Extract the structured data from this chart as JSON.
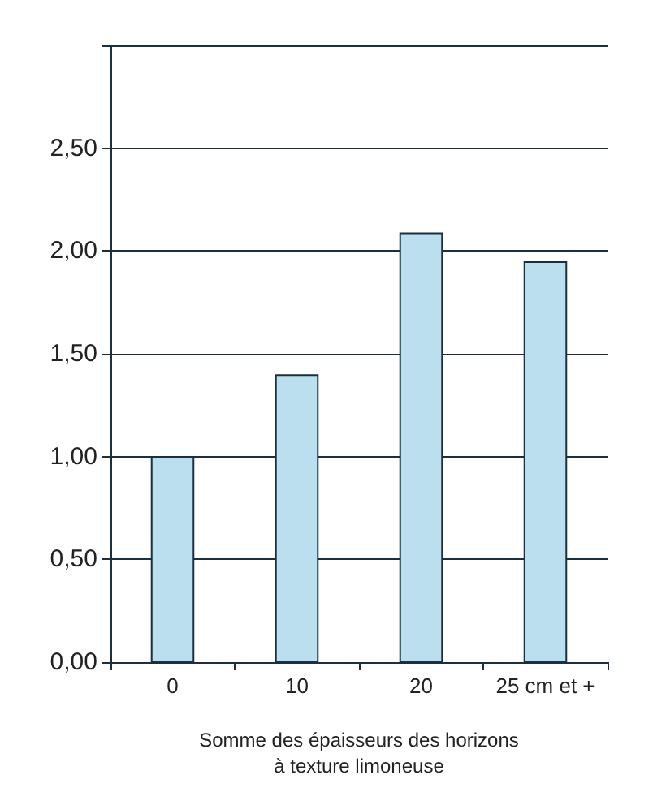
{
  "chart_data": {
    "type": "bar",
    "xlabel": "Somme des épaisseurs des horizons\nà texture limoneuse",
    "categories": [
      "0",
      "10",
      "20",
      "25 cm et +"
    ],
    "values": [
      1.0,
      1.4,
      2.09,
      1.95
    ],
    "color": "#bcdff0",
    "ylim": [
      0,
      3
    ],
    "yticks": [
      {
        "value": 0,
        "label": "0,00"
      },
      {
        "value": 0.5,
        "label": "0,50"
      },
      {
        "value": 1,
        "label": "1,00"
      },
      {
        "value": 1.5,
        "label": "1,50"
      },
      {
        "value": 2,
        "label": "2,00"
      },
      {
        "value": 2.5,
        "label": "2,50"
      },
      {
        "value": 3,
        "label": null
      }
    ],
    "grid": "y"
  }
}
